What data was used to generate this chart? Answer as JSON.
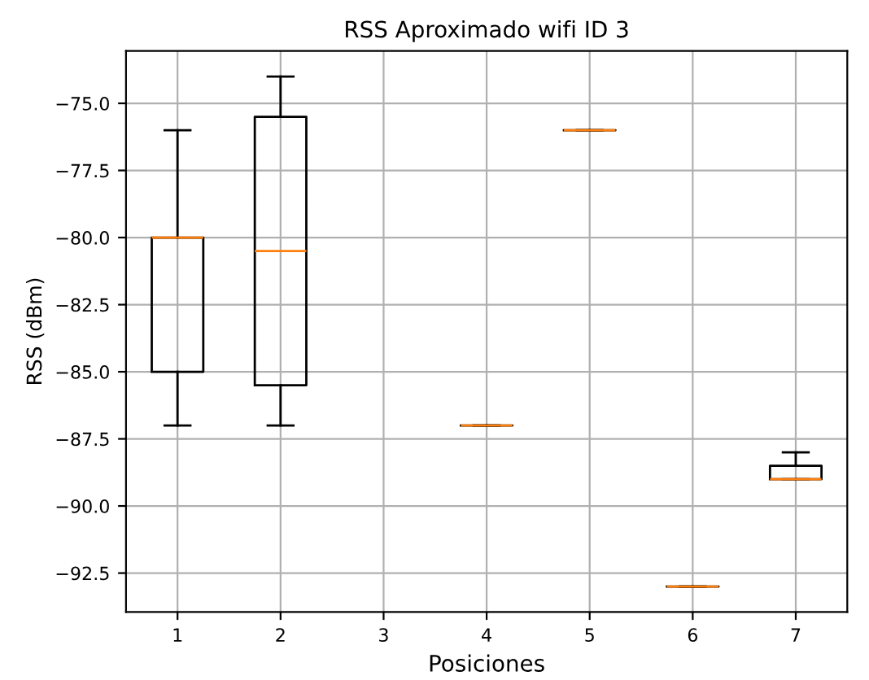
{
  "chart_data": {
    "type": "box",
    "title": "RSS Aproximado wifi ID 3",
    "xlabel": "Posiciones",
    "ylabel": "RSS (dBm)",
    "categories": [
      "1",
      "2",
      "3",
      "4",
      "5",
      "6",
      "7"
    ],
    "boxes": [
      {
        "low": -87,
        "q1": -85,
        "median": -80,
        "q3": -80,
        "high": -76
      },
      {
        "low": -87,
        "q1": -85.5,
        "median": -80.5,
        "q3": -75.5,
        "high": -74
      },
      null,
      {
        "low": -87,
        "q1": -87,
        "median": -87,
        "q3": -87,
        "high": -87
      },
      {
        "low": -76,
        "q1": -76,
        "median": -76,
        "q3": -76,
        "high": -76
      },
      {
        "low": -93,
        "q1": -93,
        "median": -93,
        "q3": -93,
        "high": -93
      },
      {
        "low": -89,
        "q1": -89,
        "median": -89,
        "q3": -88.5,
        "high": -88
      }
    ],
    "color": "#000000",
    "ylim": [
      -93.95,
      -73.05
    ],
    "yticks": [
      {
        "value": -92.5,
        "label": "−92.5"
      },
      {
        "value": -90,
        "label": "−90.0"
      },
      {
        "value": -87.5,
        "label": "−87.5"
      },
      {
        "value": -85,
        "label": "−85.0"
      },
      {
        "value": -82.5,
        "label": "−82.5"
      },
      {
        "value": -80,
        "label": "−80.0"
      },
      {
        "value": -77.5,
        "label": "−77.5"
      },
      {
        "value": -75,
        "label": "−75.0"
      }
    ],
    "grid": true
  }
}
